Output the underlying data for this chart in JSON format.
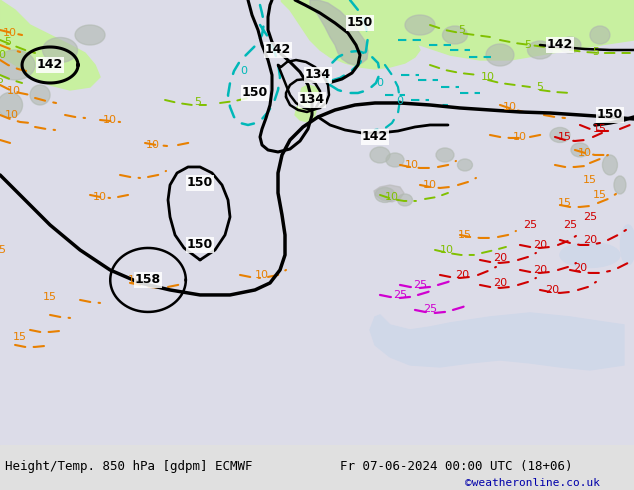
{
  "title_left": "Height/Temp. 850 hPa [gdpm] ECMWF",
  "title_right": "Fr 07-06-2024 00:00 UTC (18+06)",
  "credit": "©weatheronline.co.uk",
  "fig_width": 6.34,
  "fig_height": 4.9,
  "dpi": 100,
  "bg_land": "#c8f0a0",
  "bg_ocean": "#e8e8f0",
  "bg_mountain": "#b0b8b0",
  "bg_white": "#f0f0f8",
  "bottom_bar": "#d8d8d8",
  "colors": {
    "black": "#000000",
    "cyan": "#00b8b8",
    "green": "#80c000",
    "orange": "#e88000",
    "red": "#d00000",
    "magenta": "#d000d0",
    "darkred": "#c80000"
  }
}
